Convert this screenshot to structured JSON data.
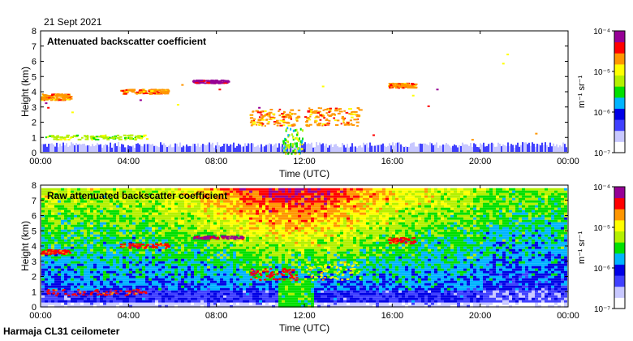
{
  "date": "21 Sept 2021",
  "footer": "Harmaja CL31 ceilometer",
  "colors": {
    "colormap": [
      "#ffffff",
      "#c8c8ff",
      "#4040ff",
      "#0000e6",
      "#00b4ff",
      "#00e000",
      "#b4f000",
      "#ffff00",
      "#ff9600",
      "#ff0000",
      "#960096"
    ],
    "axis": "#000000"
  },
  "chart_data": [
    {
      "type": "heatmap",
      "title": "Attenuated backscatter coefficient",
      "xlabel": "Time (UTC)",
      "ylabel": "Height (km)",
      "xlim": [
        0,
        24
      ],
      "ylim": [
        0,
        8
      ],
      "x_ticks": [
        "00:00",
        "04:00",
        "08:00",
        "12:00",
        "16:00",
        "20:00",
        "00:00"
      ],
      "y_ticks": [
        "0",
        "1",
        "2",
        "3",
        "4",
        "5",
        "6",
        "7",
        "8"
      ],
      "colorbar": {
        "label": "m⁻¹ sr⁻¹",
        "ticks": [
          "10⁻⁴",
          "10⁻⁵",
          "10⁻⁶",
          "10⁻⁷"
        ],
        "scale": "log",
        "range": [
          1e-07,
          0.0001
        ]
      },
      "layers": [
        {
          "name": "surface aerosol",
          "x_range": [
            0,
            24
          ],
          "height_km": [
            0,
            0.4
          ]
        },
        {
          "name": "low cloud",
          "x_range": [
            0.2,
            4.8
          ],
          "height_km": [
            0.9,
            1.2
          ]
        },
        {
          "name": "mid cloud",
          "x_range": [
            0,
            1.3
          ],
          "height_km": [
            3.5,
            3.9
          ]
        },
        {
          "name": "mid cloud",
          "x_range": [
            3.6,
            5.8
          ],
          "height_km": [
            3.9,
            4.2
          ]
        },
        {
          "name": "upper cloud",
          "x_range": [
            6.9,
            8.5
          ],
          "height_km": [
            4.6,
            4.8
          ]
        },
        {
          "name": "descending cloud",
          "x_range": [
            9.5,
            11.7
          ],
          "height_km": [
            1.8,
            2.9
          ]
        },
        {
          "name": "rising cloud",
          "x_range": [
            12,
            14.5
          ],
          "height_km": [
            1.8,
            3.0
          ]
        },
        {
          "name": "precipitation",
          "x_range": [
            11,
            11.9
          ],
          "height_km": [
            0,
            1.8
          ]
        },
        {
          "name": "mid cloud",
          "x_range": [
            15.8,
            17
          ],
          "height_km": [
            4.3,
            4.6
          ]
        }
      ]
    },
    {
      "type": "heatmap",
      "title": "Raw attenuated backscatter coefficient",
      "xlabel": "Time (UTC)",
      "ylabel": "Height (km)",
      "xlim": [
        0,
        24
      ],
      "ylim": [
        0,
        8
      ],
      "x_ticks": [
        "00:00",
        "04:00",
        "08:00",
        "12:00",
        "16:00",
        "20:00",
        "00:00"
      ],
      "y_ticks": [
        "0",
        "1",
        "2",
        "3",
        "4",
        "5",
        "6",
        "7",
        "8"
      ],
      "colorbar": {
        "label": "m⁻¹ sr⁻¹",
        "ticks": [
          "10⁻⁴",
          "10⁻⁵",
          "10⁻⁶",
          "10⁻⁷"
        ],
        "scale": "log",
        "range": [
          1e-07,
          0.0001
        ]
      }
    }
  ]
}
